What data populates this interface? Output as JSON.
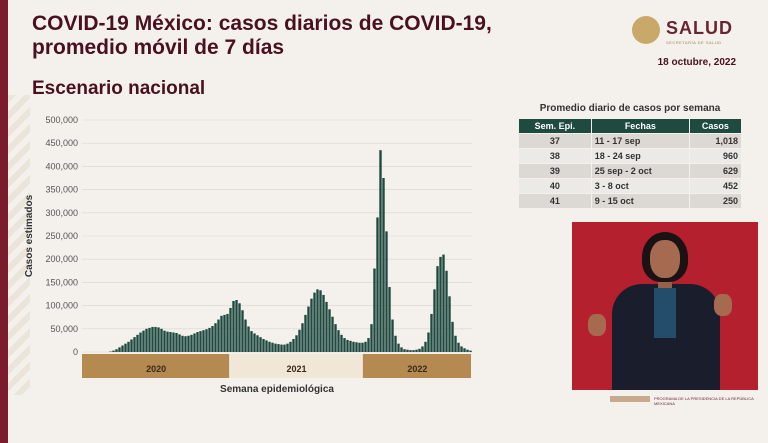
{
  "header": {
    "title": "COVID-19 México: casos diarios de COVID-19, promedio móvil de 7 días",
    "subtitle": "Escenario nacional",
    "date": "18 octubre, 2022",
    "logo_text": "SALUD",
    "logo_subtext": "SECRETARÍA DE SALUD"
  },
  "colors": {
    "bar": "#1e4a40",
    "accent": "#4a1020",
    "year_band": "#b58a50",
    "video_bg": "#b5202f"
  },
  "chart_data": {
    "type": "bar",
    "xlabel": "Semana epidemiológica",
    "ylabel": "Casos estimados",
    "ylim": [
      0,
      500000
    ],
    "yticks": [
      0,
      50000,
      100000,
      150000,
      200000,
      250000,
      300000,
      350000,
      400000,
      450000,
      500000
    ],
    "ytick_labels": [
      "0",
      "50,000",
      "100,000",
      "150,000",
      "200,000",
      "250,000",
      "300,000",
      "350,000",
      "400,000",
      "450,000",
      "500,000"
    ],
    "years": [
      "2020",
      "2021",
      "2022"
    ],
    "values": [
      0,
      0,
      0,
      0,
      0,
      0,
      0,
      0,
      0,
      1000,
      3000,
      6000,
      10000,
      14000,
      18000,
      22000,
      27000,
      32000,
      37000,
      42000,
      46000,
      50000,
      52000,
      54000,
      54000,
      53000,
      50000,
      46000,
      44000,
      43000,
      42000,
      41000,
      38000,
      35000,
      34000,
      35000,
      37000,
      40000,
      43000,
      45000,
      47000,
      49000,
      52000,
      56000,
      62000,
      70000,
      78000,
      80000,
      82000,
      95000,
      110000,
      112000,
      105000,
      90000,
      70000,
      55000,
      45000,
      40000,
      36000,
      32000,
      28000,
      25000,
      22000,
      20000,
      18000,
      17000,
      16000,
      16000,
      18000,
      22000,
      28000,
      36000,
      48000,
      62000,
      80000,
      98000,
      115000,
      128000,
      135000,
      133000,
      123000,
      108000,
      92000,
      76000,
      60000,
      47000,
      37000,
      30000,
      26000,
      24000,
      22000,
      21000,
      20000,
      20000,
      22000,
      30000,
      60000,
      180000,
      290000,
      435000,
      375000,
      260000,
      140000,
      70000,
      35000,
      18000,
      10000,
      6000,
      5000,
      4000,
      4000,
      5000,
      7000,
      12000,
      22000,
      42000,
      82000,
      135000,
      185000,
      205000,
      210000,
      175000,
      120000,
      65000,
      35000,
      20000,
      12000,
      8000,
      5000,
      3000
    ]
  },
  "table": {
    "title": "Promedio diario de casos por semana",
    "headers": [
      "Sem. Epi.",
      "Fechas",
      "Casos"
    ],
    "rows": [
      {
        "week": "37",
        "dates": "11 - 17 sep",
        "cases": "1,018"
      },
      {
        "week": "38",
        "dates": "18 - 24 sep",
        "cases": "960"
      },
      {
        "week": "39",
        "dates": "25 sep - 2 oct",
        "cases": "629"
      },
      {
        "week": "40",
        "dates": "3 - 8 oct",
        "cases": "452"
      },
      {
        "week": "41",
        "dates": "9 - 15 oct",
        "cases": "250"
      }
    ]
  },
  "footer": {
    "caption": "PROGRAMA DE LA PRESIDENCIA DE LA REPÚBLICA MEXICANA"
  }
}
